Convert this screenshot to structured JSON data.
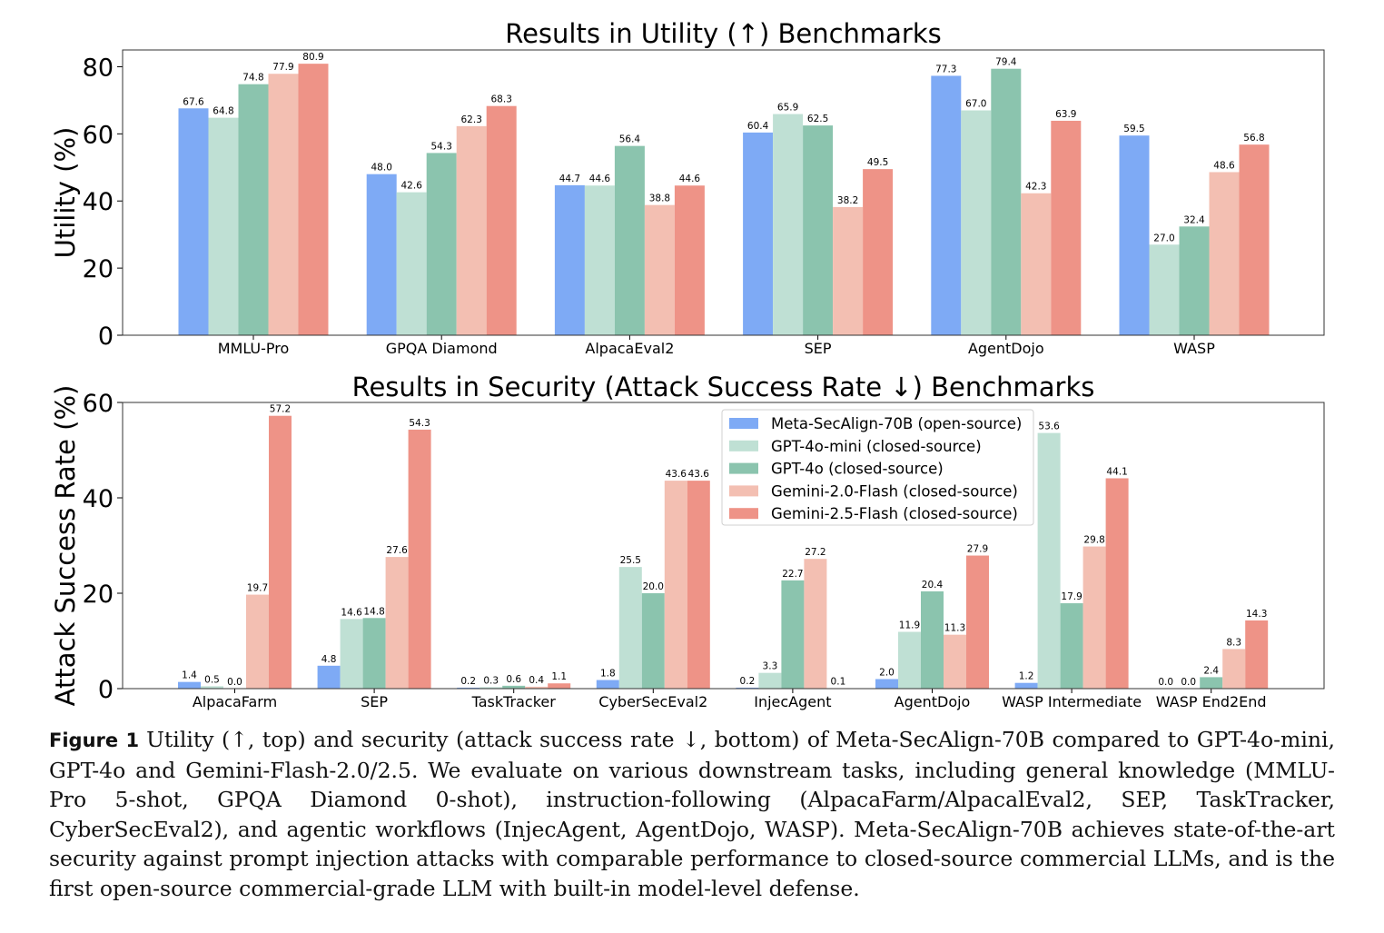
{
  "chart_data": [
    {
      "type": "bar",
      "title": "Results in Utility (↑) Benchmarks",
      "ylabel": "Utility (%)",
      "ylim": [
        0,
        85
      ],
      "yticks": [
        0,
        20,
        40,
        60,
        80
      ],
      "categories": [
        "MMLU-Pro",
        "GPQA Diamond",
        "AlpacaEval2",
        "SEP",
        "AgentDojo",
        "WASP"
      ],
      "series": [
        {
          "name": "Meta-SecAlign-70B (open-source)",
          "color": "#7eaaf5",
          "values": [
            67.6,
            48.0,
            44.7,
            60.4,
            77.3,
            59.5
          ]
        },
        {
          "name": "GPT-4o-mini (closed-source)",
          "color": "#bfe0d4",
          "values": [
            64.8,
            42.6,
            44.6,
            65.9,
            67.0,
            27.0
          ]
        },
        {
          "name": "GPT-4o (closed-source)",
          "color": "#8bc4ae",
          "values": [
            74.8,
            54.3,
            56.4,
            62.5,
            79.4,
            32.4
          ]
        },
        {
          "name": "Gemini-2.0-Flash (closed-source)",
          "color": "#f3bfb2",
          "values": [
            77.9,
            62.3,
            38.8,
            38.2,
            42.3,
            48.6
          ]
        },
        {
          "name": "Gemini-2.5-Flash (closed-source)",
          "color": "#ee9387",
          "values": [
            80.9,
            68.3,
            44.6,
            49.5,
            63.9,
            56.8
          ]
        }
      ],
      "grid": false
    },
    {
      "type": "bar",
      "title": "Results in Security (Attack Success Rate ↓) Benchmarks",
      "ylabel": "Attack Success Rate (%)",
      "ylim": [
        0,
        60
      ],
      "yticks": [
        0,
        20,
        40,
        60
      ],
      "categories": [
        "AlpacaFarm",
        "SEP",
        "TaskTracker",
        "CyberSecEval2",
        "InjecAgent",
        "AgentDojo",
        "WASP Intermediate",
        "WASP End2End"
      ],
      "series": [
        {
          "name": "Meta-SecAlign-70B (open-source)",
          "color": "#7eaaf5",
          "values": [
            1.4,
            4.8,
            0.2,
            1.8,
            0.2,
            2.0,
            1.2,
            0.0
          ]
        },
        {
          "name": "GPT-4o-mini (closed-source)",
          "color": "#bfe0d4",
          "values": [
            0.5,
            14.6,
            0.3,
            25.5,
            3.3,
            11.9,
            53.6,
            0.0
          ]
        },
        {
          "name": "GPT-4o (closed-source)",
          "color": "#8bc4ae",
          "values": [
            0.0,
            14.8,
            0.6,
            20.0,
            22.7,
            20.4,
            17.9,
            2.4
          ]
        },
        {
          "name": "Gemini-2.0-Flash (closed-source)",
          "color": "#f3bfb2",
          "values": [
            19.7,
            27.6,
            0.4,
            43.6,
            27.2,
            11.3,
            29.8,
            8.3
          ]
        },
        {
          "name": "Gemini-2.5-Flash (closed-source)",
          "color": "#ee9387",
          "values": [
            57.2,
            54.3,
            1.1,
            43.6,
            0.1,
            27.9,
            44.1,
            14.3
          ]
        }
      ],
      "legend": "upper-center",
      "grid": false
    }
  ],
  "caption": {
    "label": "Figure 1",
    "text": "Utility (↑, top) and security (attack success rate ↓, bottom) of Meta-SecAlign-70B compared to GPT-4o-mini, GPT-4o and Gemini-Flash-2.0/2.5. We evaluate on various downstream tasks, including general knowledge (MMLU-Pro 5-shot, GPQA Diamond 0-shot), instruction-following (AlpacaFarm/AlpacalEval2, SEP, TaskTracker, CyberSecEval2), and agentic workflows (InjecAgent, AgentDojo, WASP). Meta-SecAlign-70B achieves state-of-the-art security against prompt injection attacks with comparable performance to closed-source commercial LLMs, and is the first open-source commercial-grade LLM with built-in model-level defense."
  }
}
